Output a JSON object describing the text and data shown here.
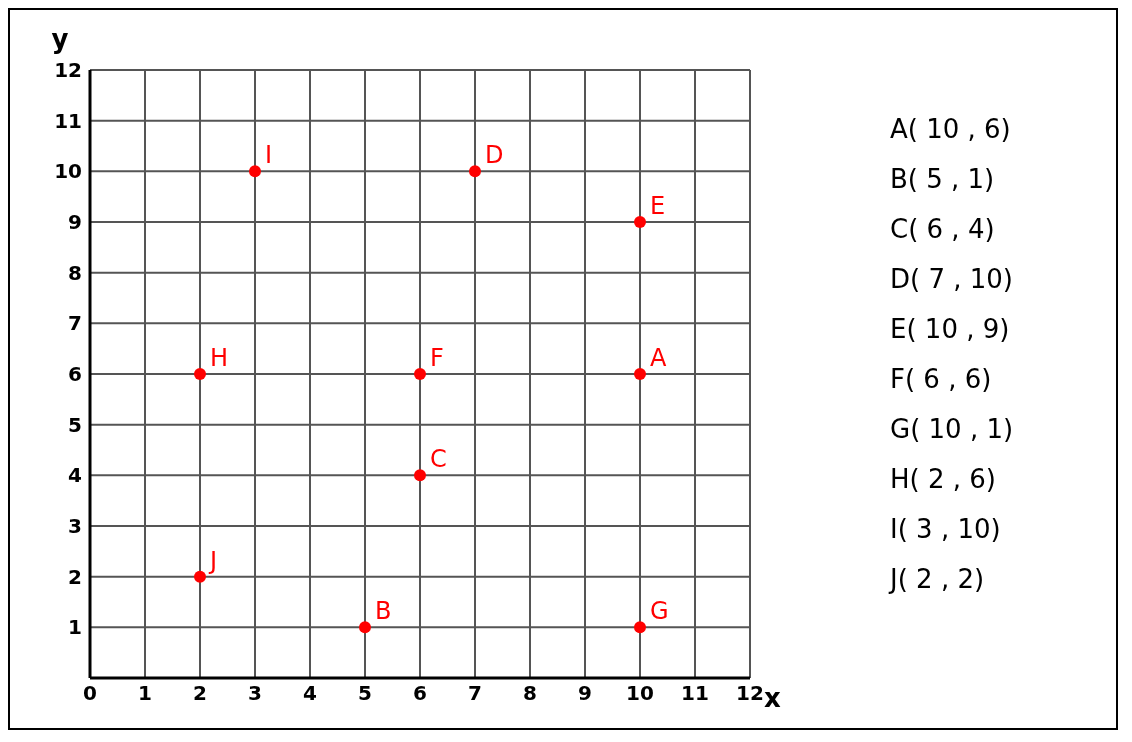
{
  "chart_data": {
    "type": "scatter",
    "xlabel": "x",
    "ylabel": "y",
    "x": [
      10,
      5,
      6,
      7,
      10,
      6,
      10,
      2,
      3,
      2
    ],
    "values": [
      6,
      1,
      4,
      10,
      9,
      6,
      1,
      6,
      10,
      2
    ],
    "color": "#ff0000",
    "marker": "circle",
    "xlim": [
      0,
      12
    ],
    "ylim": [
      0,
      12
    ],
    "xticks": [
      0,
      1,
      2,
      3,
      4,
      5,
      6,
      7,
      8,
      9,
      10,
      11,
      12
    ],
    "yticks": [
      1,
      2,
      3,
      4,
      5,
      6,
      7,
      8,
      9,
      10,
      11,
      12
    ],
    "grid": true,
    "annotations": [
      {
        "text": "A",
        "x": 10,
        "y": 6
      },
      {
        "text": "B",
        "x": 5,
        "y": 1
      },
      {
        "text": "C",
        "x": 6,
        "y": 4
      },
      {
        "text": "D",
        "x": 7,
        "y": 10
      },
      {
        "text": "E",
        "x": 10,
        "y": 9
      },
      {
        "text": "F",
        "x": 6,
        "y": 6
      },
      {
        "text": "G",
        "x": 10,
        "y": 1
      },
      {
        "text": "H",
        "x": 2,
        "y": 6
      },
      {
        "text": "I",
        "x": 3,
        "y": 10
      },
      {
        "text": "J",
        "x": 2,
        "y": 2
      },
      "A( 10 , 6)",
      "B( 5 , 1)",
      "C( 6 , 4)",
      "D( 7 , 10)",
      "E( 10 , 9)",
      "F( 6 , 6)",
      "G( 10 , 1)",
      "H( 2 , 6)",
      "I( 3 , 10)",
      "J( 2 , 2)"
    ]
  }
}
